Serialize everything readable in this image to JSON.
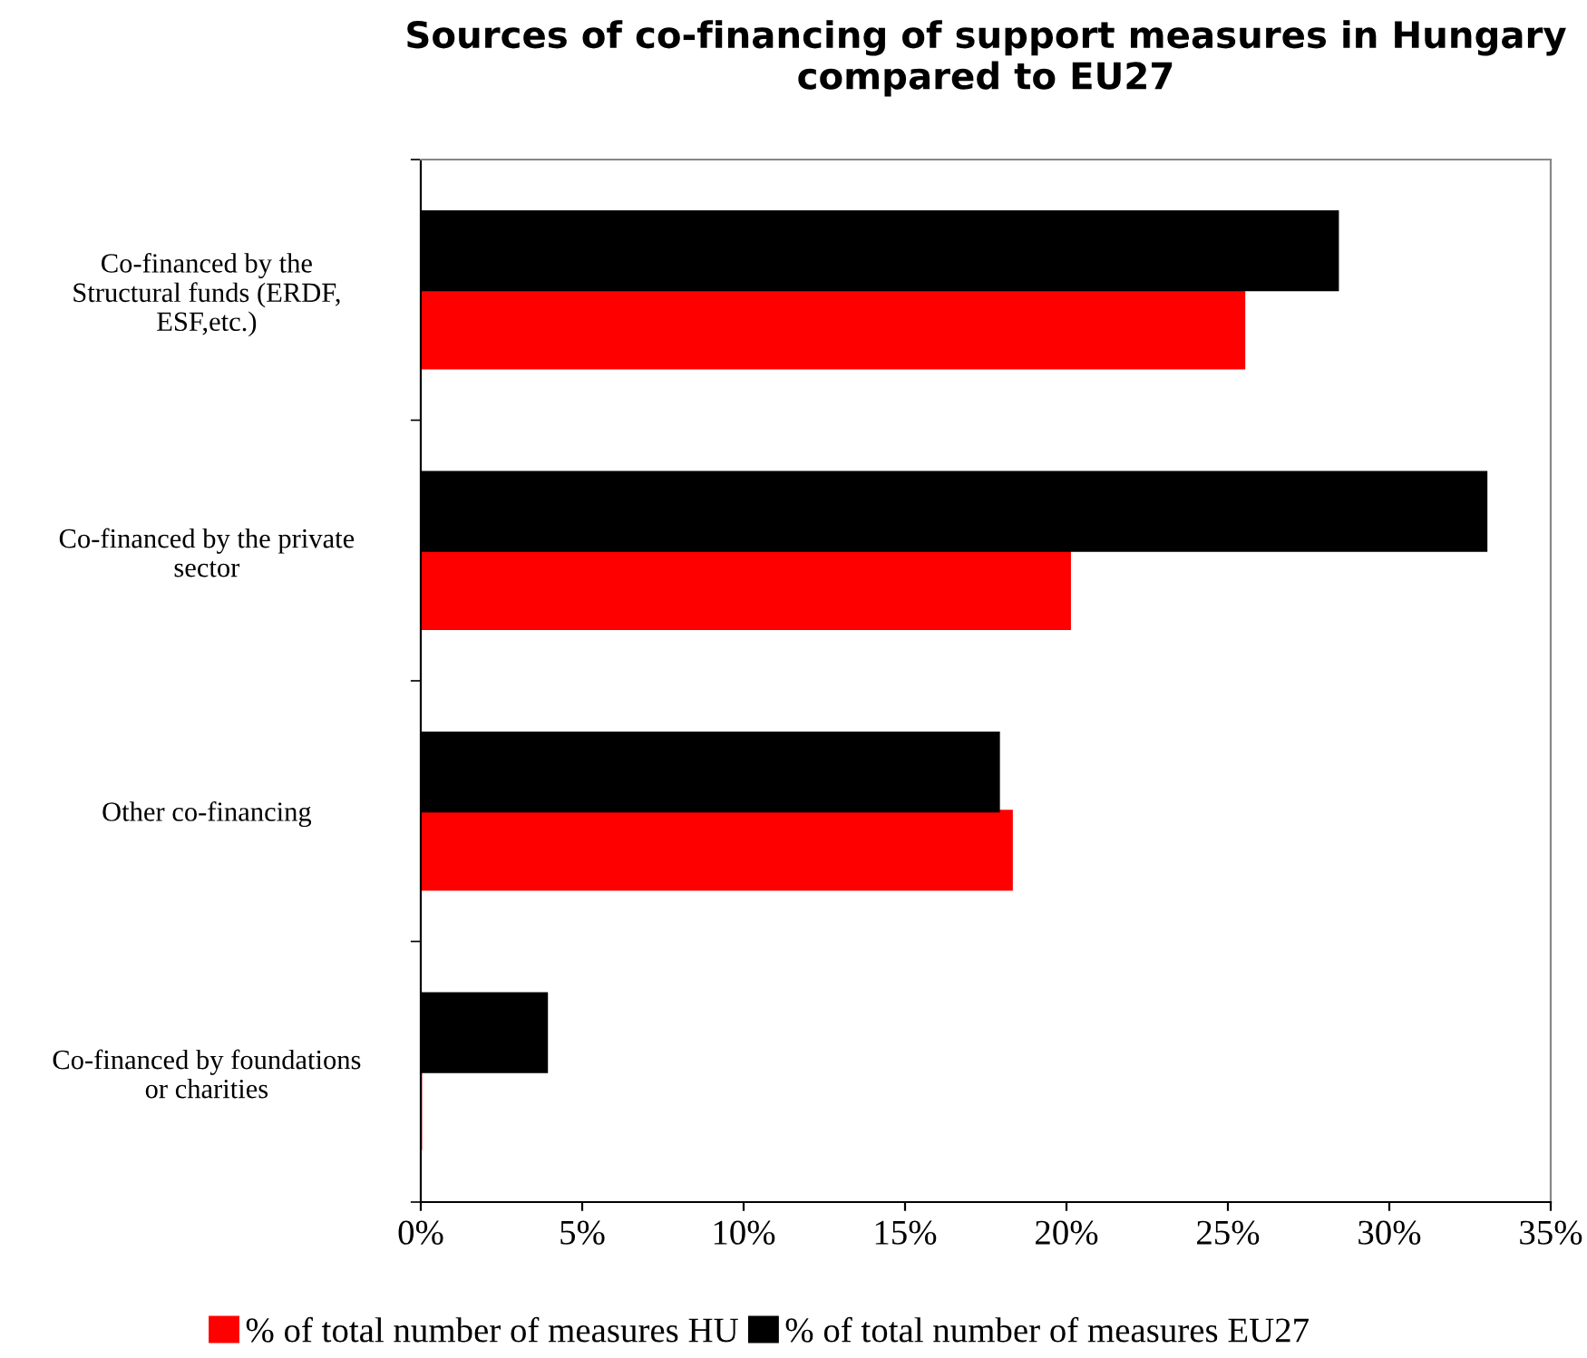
{
  "chart_data": {
    "type": "bar",
    "orientation": "horizontal",
    "title": "Sources of co-financing of support measures in Hungary\ncompared to EU27",
    "categories": [
      "Co-financed by the\nStructural funds (ERDF,\nESF,etc.)",
      "Co-financed by the private\nsector",
      "Other co-financing",
      "Co-financed by foundations\nor charities"
    ],
    "series": [
      {
        "name": "% of total number of measures HU",
        "color": "#ff0000",
        "values": [
          25.5,
          20.1,
          18.3,
          0
        ]
      },
      {
        "name": "% of total number of measures EU27",
        "color": "#000000",
        "values": [
          28.4,
          33.0,
          17.9,
          3.9
        ]
      }
    ],
    "xlim": [
      0,
      35
    ],
    "xticks": [
      {
        "value": 0,
        "label": "0%"
      },
      {
        "value": 5,
        "label": "5%"
      },
      {
        "value": 10,
        "label": "10%"
      },
      {
        "value": 15,
        "label": "15%"
      },
      {
        "value": 20,
        "label": "20%"
      },
      {
        "value": 25,
        "label": "25%"
      },
      {
        "value": 30,
        "label": "30%"
      },
      {
        "value": 35,
        "label": "35%"
      }
    ],
    "legend": "bottom",
    "grid": false
  }
}
